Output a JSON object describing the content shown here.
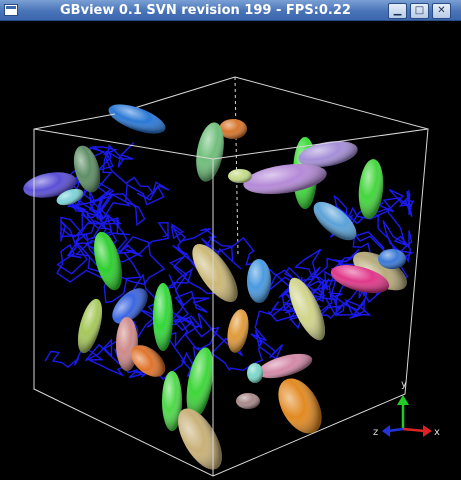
{
  "window": {
    "title": "GBview 0.1 SVN revision 199 - FPS:0.22",
    "buttons": {
      "minimize": "▁",
      "maximize": "□",
      "close": "✕"
    }
  },
  "axes": {
    "x_label": "x",
    "y_label": "y",
    "z_label": "z",
    "x_color": "#dd2222",
    "y_color": "#22cc22",
    "z_color": "#2233dd"
  },
  "colors": {
    "background": "#000000",
    "box_edges": "#d8d8d8",
    "chain": "#1a1aee"
  }
}
